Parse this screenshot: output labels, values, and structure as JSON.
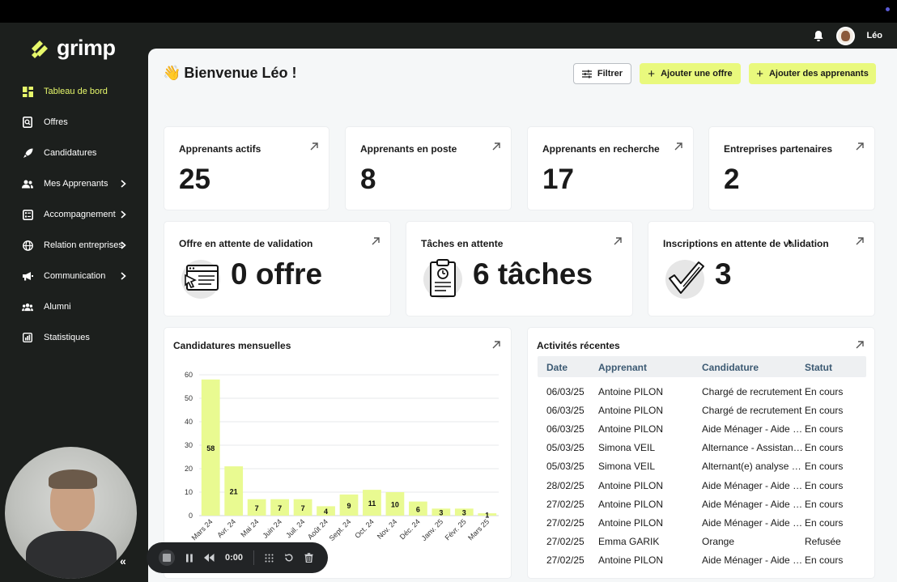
{
  "app": {
    "name": "grimp"
  },
  "header": {
    "user_name": "Léo"
  },
  "sidebar": {
    "items": [
      {
        "label": "Tableau de bord",
        "icon": "dashboard-icon",
        "active": true,
        "has_submenu": false
      },
      {
        "label": "Offres",
        "icon": "search-doc-icon",
        "active": false,
        "has_submenu": false
      },
      {
        "label": "Candidatures",
        "icon": "rocket-icon",
        "active": false,
        "has_submenu": false
      },
      {
        "label": "Mes Apprenants",
        "icon": "users-icon",
        "active": false,
        "has_submenu": true
      },
      {
        "label": "Accompagnement",
        "icon": "checklist-icon",
        "active": false,
        "has_submenu": true
      },
      {
        "label": "Relation entreprises",
        "icon": "globe-icon",
        "active": false,
        "has_submenu": true
      },
      {
        "label": "Communication",
        "icon": "megaphone-icon",
        "active": false,
        "has_submenu": true
      },
      {
        "label": "Alumni",
        "icon": "group-icon",
        "active": false,
        "has_submenu": false
      },
      {
        "label": "Statistiques",
        "icon": "chart-icon",
        "active": false,
        "has_submenu": false
      }
    ]
  },
  "main": {
    "welcome_emoji": "👋",
    "welcome_title": "Bienvenue Léo !",
    "buttons": {
      "filter": "Filtrer",
      "add_offer": "Ajouter une offre",
      "add_learners": "Ajouter des apprenants"
    },
    "stats": [
      {
        "label": "Apprenants actifs",
        "value": "25"
      },
      {
        "label": "Apprenants en poste",
        "value": "8"
      },
      {
        "label": "Apprenants en recherche",
        "value": "17"
      },
      {
        "label": "Entreprises partenaires",
        "value": "2"
      }
    ],
    "pending": [
      {
        "label": "Offre en attente de validation",
        "value": "0 offre",
        "icon": "browser-cursor-icon"
      },
      {
        "label": "Tâches en attente",
        "value": "6 tâches",
        "icon": "clipboard-icon"
      },
      {
        "label": "Inscriptions en attente de validation",
        "value": "3",
        "icon": "checkmark-icon"
      }
    ],
    "chart_title": "Candidatures mensuelles",
    "activity": {
      "title": "Activités récentes",
      "columns": [
        "Date",
        "Apprenant",
        "Candidature",
        "Statut"
      ],
      "rows": [
        [
          "06/03/25",
          "Antoine PILON",
          "Chargé de recrutement",
          "En cours"
        ],
        [
          "06/03/25",
          "Antoine PILON",
          "Chargé de recrutement",
          "En cours"
        ],
        [
          "06/03/25",
          "Antoine PILON",
          "Aide Ménager - Aide à domicile",
          "En cours"
        ],
        [
          "05/03/25",
          "Simona VEIL",
          "Alternance - Assistant(e)",
          "En cours"
        ],
        [
          "05/03/25",
          "Simona VEIL",
          "Alternant(e) analyse statistique",
          "En cours"
        ],
        [
          "28/02/25",
          "Antoine PILON",
          "Aide Ménager - Aide à domicile",
          "En cours"
        ],
        [
          "27/02/25",
          "Antoine PILON",
          "Aide Ménager - Aide à domicile",
          "En cours"
        ],
        [
          "27/02/25",
          "Antoine PILON",
          "Aide Ménager - Aide à domicile",
          "En cours"
        ],
        [
          "27/02/25",
          "Emma GARIK",
          "Orange",
          "Refusée"
        ],
        [
          "27/02/25",
          "Antoine PILON",
          "Aide Ménager - Aide à domicile",
          "En cours"
        ]
      ]
    }
  },
  "recorder": {
    "time": "0:00"
  },
  "colors": {
    "accent": "#e9f97d",
    "bar": "#e9fa91",
    "sidebar_bg": "#1c1f1d",
    "active_nav": "#e7f86b"
  },
  "chart_data": {
    "type": "bar",
    "title": "Candidatures mensuelles",
    "categories": [
      "Mars 24",
      "Avr. 24",
      "Mai 24",
      "Juin 24",
      "Juil. 24",
      "Août 24",
      "Sept. 24",
      "Oct. 24",
      "Nov. 24",
      "Déc. 24",
      "Janv. 25",
      "Févr. 25",
      "Mars 25"
    ],
    "values": [
      58,
      21,
      7,
      7,
      7,
      4,
      9,
      11,
      10,
      6,
      3,
      3,
      1
    ],
    "ylim": [
      0,
      60
    ],
    "yticks": [
      0,
      10,
      20,
      30,
      40,
      50,
      60
    ],
    "grid": true,
    "data_labels": true
  }
}
